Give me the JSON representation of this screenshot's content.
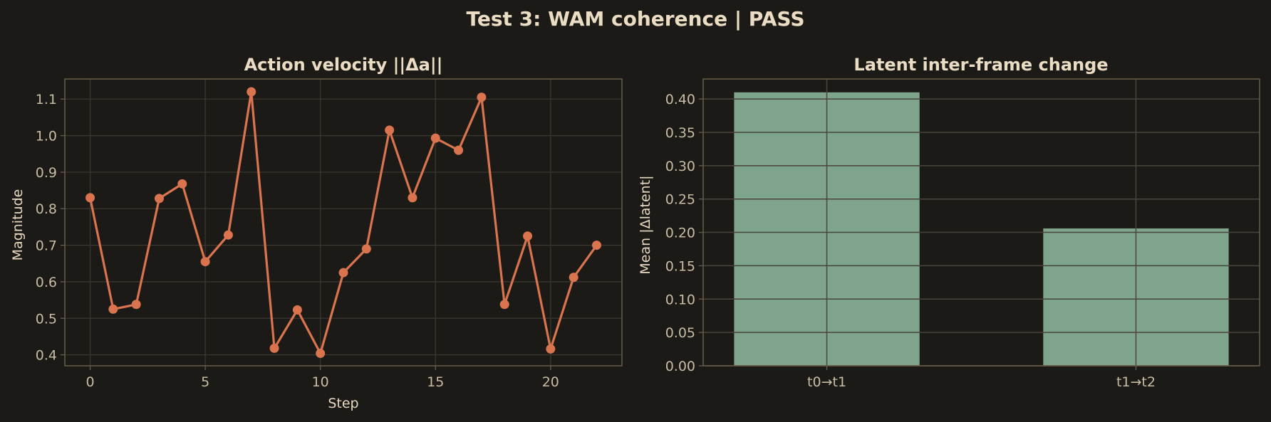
{
  "figure": {
    "title": "Test 3: WAM coherence  |  PASS",
    "background": "#1b1a17",
    "text_color": "#ebdcc4"
  },
  "chart_data": [
    {
      "type": "line",
      "title": "Action velocity ||Δa||",
      "xlabel": "Step",
      "ylabel": "Magnitude",
      "xlim": [
        -1.1,
        23.1
      ],
      "ylim": [
        0.37,
        1.155
      ],
      "xticks": [
        0,
        5,
        10,
        15,
        20
      ],
      "yticks": [
        0.4,
        0.5,
        0.6,
        0.7,
        0.8,
        0.9,
        1.0,
        1.1
      ],
      "ytick_labels": [
        "0.4",
        "0.5",
        "0.6",
        "0.7",
        "0.8",
        "0.9",
        "1.0",
        "1.1"
      ],
      "grid": true,
      "color": "#d9744f",
      "x": [
        0,
        1,
        2,
        3,
        4,
        5,
        6,
        7,
        8,
        9,
        10,
        11,
        12,
        13,
        14,
        15,
        16,
        17,
        18,
        19,
        20,
        21,
        22
      ],
      "y": [
        0.83,
        0.525,
        0.538,
        0.828,
        0.868,
        0.655,
        0.728,
        1.12,
        0.418,
        0.523,
        0.404,
        0.625,
        0.69,
        1.015,
        0.83,
        0.993,
        0.96,
        1.105,
        0.538,
        0.725,
        0.416,
        0.612,
        0.7
      ]
    },
    {
      "type": "bar",
      "title": "Latent inter-frame change",
      "xlabel": "",
      "ylabel": "Mean |Δlatent|",
      "categories": [
        "t0→t1",
        "t1→t2"
      ],
      "values": [
        0.41,
        0.206
      ],
      "ylim": [
        0,
        0.43
      ],
      "yticks": [
        0.0,
        0.05,
        0.1,
        0.15,
        0.2,
        0.25,
        0.3,
        0.35,
        0.4
      ],
      "ytick_labels": [
        "0.00",
        "0.05",
        "0.10",
        "0.15",
        "0.20",
        "0.25",
        "0.30",
        "0.35",
        "0.40"
      ],
      "grid": true,
      "color": "#7ea58b"
    }
  ]
}
